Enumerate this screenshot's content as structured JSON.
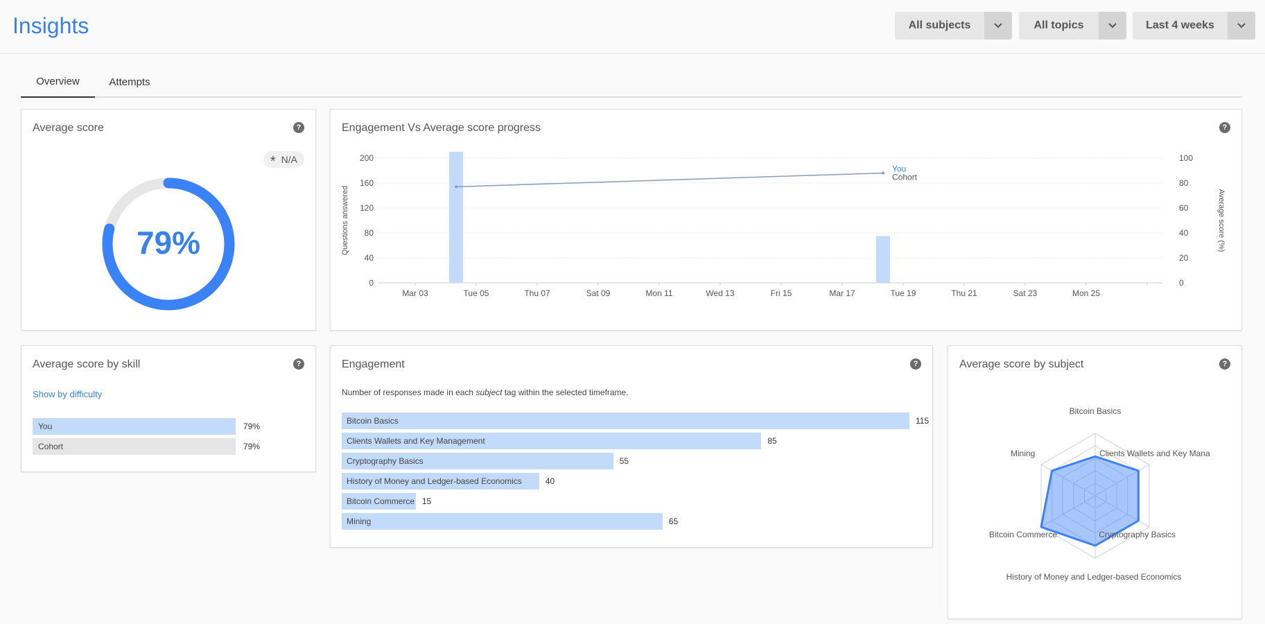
{
  "header": {
    "title": "Insights",
    "filters": [
      {
        "label": "All subjects"
      },
      {
        "label": "All topics"
      },
      {
        "label": "Last 4 weeks"
      }
    ]
  },
  "tabs": [
    {
      "label": "Overview",
      "active": true
    },
    {
      "label": "Attempts",
      "active": false
    }
  ],
  "average_score": {
    "title": "Average score",
    "badge": "N/A",
    "value_text": "79%",
    "value": 79,
    "color": "#3b82f6"
  },
  "engagement_progress": {
    "title": "Engagement Vs Average score progress",
    "chart_data": {
      "type": "bar",
      "categories": [
        "Mar 03",
        "Tue 05",
        "Thu 07",
        "Sat 09",
        "Mon 11",
        "Wed 13",
        "Fri 15",
        "Mar 17",
        "Tue 19",
        "Thu 21",
        "Sat 23",
        "Mon 25"
      ],
      "ylabel": "Questions answered",
      "y2label": "Average score (%)",
      "ylim": [
        0,
        200
      ],
      "y2lim": [
        0,
        100
      ],
      "yticks": [
        "0",
        "40",
        "80",
        "120",
        "160",
        "200"
      ],
      "y2ticks": [
        "0",
        "20",
        "40",
        "60",
        "80",
        "100"
      ],
      "bars": [
        {
          "date_offset_days": 1,
          "value": 210
        },
        {
          "date_offset_days": 15,
          "value": 75
        }
      ],
      "line": {
        "label_you": "You",
        "label_cohort": "Cohort",
        "points": [
          {
            "date_offset_days": 1,
            "value": 77
          },
          {
            "date_offset_days": 15,
            "value": 88
          }
        ]
      }
    }
  },
  "score_by_skill": {
    "title": "Average score by skill",
    "link": "Show by difficulty",
    "rows": [
      {
        "label": "You",
        "value": "79%",
        "color": "#c3dbfb"
      },
      {
        "label": "Cohort",
        "value": "79%",
        "color": "#e6e6e6"
      }
    ]
  },
  "engagement": {
    "title": "Engagement",
    "description_prefix": "Number of responses made in each ",
    "description_em": "subject",
    "description_suffix": " tag within the selected timeframe.",
    "chart_data": {
      "type": "bar",
      "orientation": "horizontal",
      "categories": [
        "Bitcoin Basics",
        "Clients Wallets and Key Management",
        "Cryptography Basics",
        "History of Money and Ledger-based Economics",
        "Bitcoin Commerce",
        "Mining"
      ],
      "values": [
        115,
        85,
        55,
        40,
        15,
        65
      ],
      "xlim": [
        0,
        115
      ]
    }
  },
  "score_by_subject": {
    "title": "Average score by subject",
    "chart_data": {
      "type": "radar",
      "axes": [
        "Bitcoin Basics",
        "Clients Wallets and Key Mana",
        "Cryptography Basics",
        "History of Money and Ledger-based Economics",
        "Bitcoin Commerce",
        "Mining"
      ],
      "values": [
        63,
        80,
        80,
        80,
        100,
        80
      ],
      "rlim": [
        0,
        100
      ]
    }
  }
}
